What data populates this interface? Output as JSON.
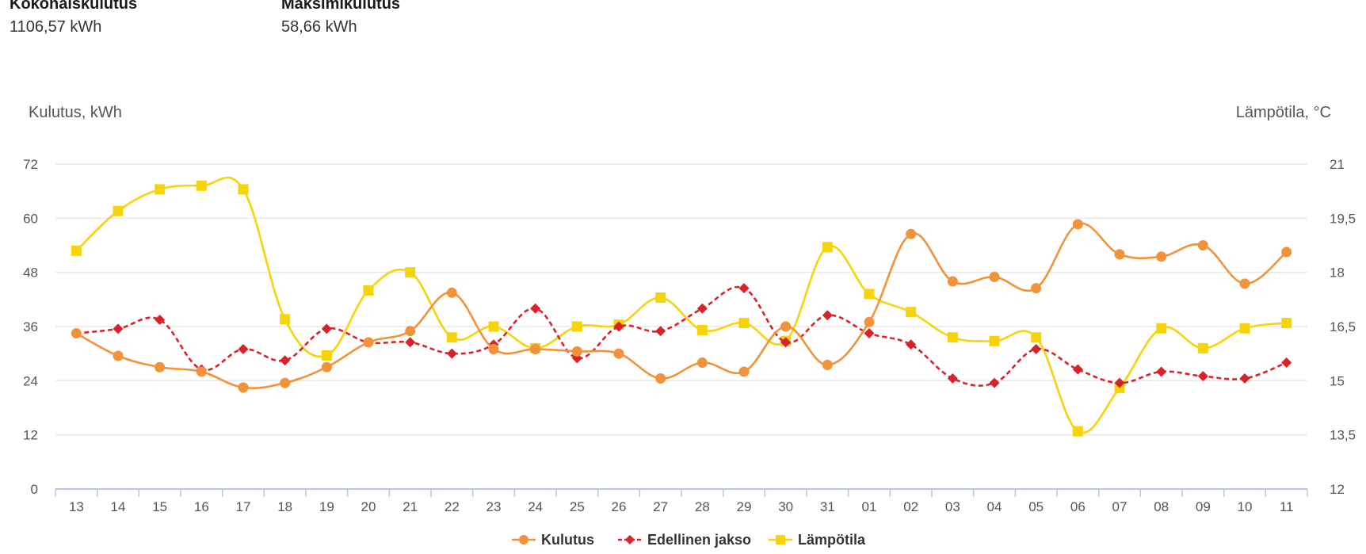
{
  "stats": [
    {
      "label": "Kokonaiskulutus",
      "value": "1106,57 kWh"
    },
    {
      "label": "Maksimikulutus",
      "value": "58,66 kWh"
    }
  ],
  "chart_data": {
    "type": "line",
    "categories": [
      "13",
      "14",
      "15",
      "16",
      "17",
      "18",
      "19",
      "20",
      "21",
      "22",
      "23",
      "24",
      "25",
      "26",
      "27",
      "28",
      "29",
      "30",
      "31",
      "01",
      "02",
      "03",
      "04",
      "05",
      "06",
      "07",
      "08",
      "09",
      "10",
      "11"
    ],
    "y_left": {
      "label": "Kulutus, kWh",
      "range": [
        0,
        72
      ],
      "ticks": [
        "0",
        "12",
        "24",
        "36",
        "48",
        "60",
        "72"
      ]
    },
    "y_right": {
      "label": "Lämpötila, °C",
      "range": [
        12,
        21
      ],
      "ticks": [
        "12",
        "13,5",
        "15",
        "16,5",
        "18",
        "19,5",
        "21"
      ]
    },
    "grid": true,
    "legend_position": "bottom-center",
    "series": [
      {
        "name": "Kulutus",
        "axis": "left",
        "color": "#f2923a",
        "marker": "circle",
        "dashed": false,
        "values": [
          34.5,
          29.5,
          27,
          26,
          22.5,
          23.5,
          27,
          32.5,
          35,
          43.5,
          31,
          31,
          30.5,
          30,
          24.5,
          28,
          26,
          36,
          27.5,
          37,
          56.5,
          46,
          47,
          44.5,
          58.66,
          52,
          51.5,
          54,
          45.5,
          52.5
        ]
      },
      {
        "name": "Edellinen jakso",
        "axis": "left",
        "color": "#d8232a",
        "marker": "diamond",
        "dashed": true,
        "values": [
          34.5,
          35.5,
          37.5,
          26.5,
          31,
          28.5,
          35.5,
          32.5,
          32.5,
          30,
          32,
          40,
          29,
          36,
          35,
          40,
          44.5,
          32.5,
          38.5,
          34.5,
          32,
          24.5,
          23.5,
          31,
          26.5,
          23.5,
          26,
          25,
          24.5,
          28
        ]
      },
      {
        "name": "Lämpötila",
        "axis": "right",
        "color": "#f7d30a",
        "marker": "square",
        "dashed": false,
        "values": [
          18.6,
          19.7,
          20.3,
          20.4,
          20.3,
          16.7,
          15.7,
          17.5,
          18,
          16.2,
          16.5,
          15.9,
          16.5,
          16.55,
          17.3,
          16.4,
          16.6,
          16.1,
          18.7,
          17.4,
          16.9,
          16.2,
          16.1,
          16.2,
          13.6,
          14.8,
          16.45,
          15.9,
          16.45,
          16.6
        ]
      }
    ]
  }
}
